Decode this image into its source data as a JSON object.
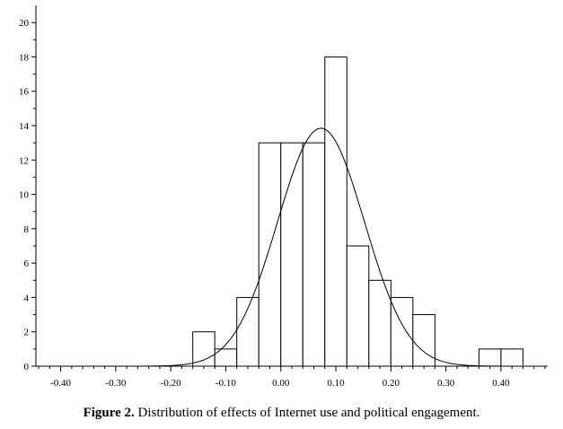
{
  "caption": {
    "label": "Figure 2.",
    "text": "Distribution of effects of Internet use and political engagement."
  },
  "chart_data": {
    "type": "bar",
    "subtype": "histogram-with-normal-curve",
    "title": "",
    "xlabel": "",
    "ylabel": "",
    "xlim": [
      -0.445,
      0.485
    ],
    "ylim": [
      0,
      21
    ],
    "x_ticks": [
      "-0.40",
      "-0.30",
      "-0.20",
      "-0.10",
      "0.00",
      "0.10",
      "0.20",
      "0.30",
      "0.40"
    ],
    "x_tick_values": [
      -0.4,
      -0.3,
      -0.2,
      -0.1,
      0.0,
      0.1,
      0.2,
      0.3,
      0.4
    ],
    "y_ticks": [
      "0",
      "2",
      "4",
      "6",
      "8",
      "10",
      "12",
      "14",
      "16",
      "18",
      "20"
    ],
    "y_tick_values": [
      0,
      2,
      4,
      6,
      8,
      10,
      12,
      14,
      16,
      18,
      20
    ],
    "bins": [
      {
        "x0": -0.16,
        "x1": -0.12,
        "count": 2
      },
      {
        "x0": -0.12,
        "x1": -0.08,
        "count": 1
      },
      {
        "x0": -0.08,
        "x1": -0.04,
        "count": 4
      },
      {
        "x0": -0.04,
        "x1": 0.0,
        "count": 13
      },
      {
        "x0": 0.0,
        "x1": 0.04,
        "count": 13
      },
      {
        "x0": 0.04,
        "x1": 0.08,
        "count": 13
      },
      {
        "x0": 0.08,
        "x1": 0.12,
        "count": 18
      },
      {
        "x0": 0.12,
        "x1": 0.16,
        "count": 7
      },
      {
        "x0": 0.16,
        "x1": 0.2,
        "count": 5
      },
      {
        "x0": 0.2,
        "x1": 0.24,
        "count": 4
      },
      {
        "x0": 0.24,
        "x1": 0.28,
        "count": 3
      },
      {
        "x0": 0.36,
        "x1": 0.4,
        "count": 1
      },
      {
        "x0": 0.4,
        "x1": 0.44,
        "count": 1
      }
    ],
    "normal_curve": {
      "mean": 0.073,
      "sd": 0.079,
      "peak": 13.85
    },
    "grid": false,
    "legend": "none",
    "colors": {
      "bar_fill": "#ffffff",
      "stroke": "#000000"
    }
  }
}
